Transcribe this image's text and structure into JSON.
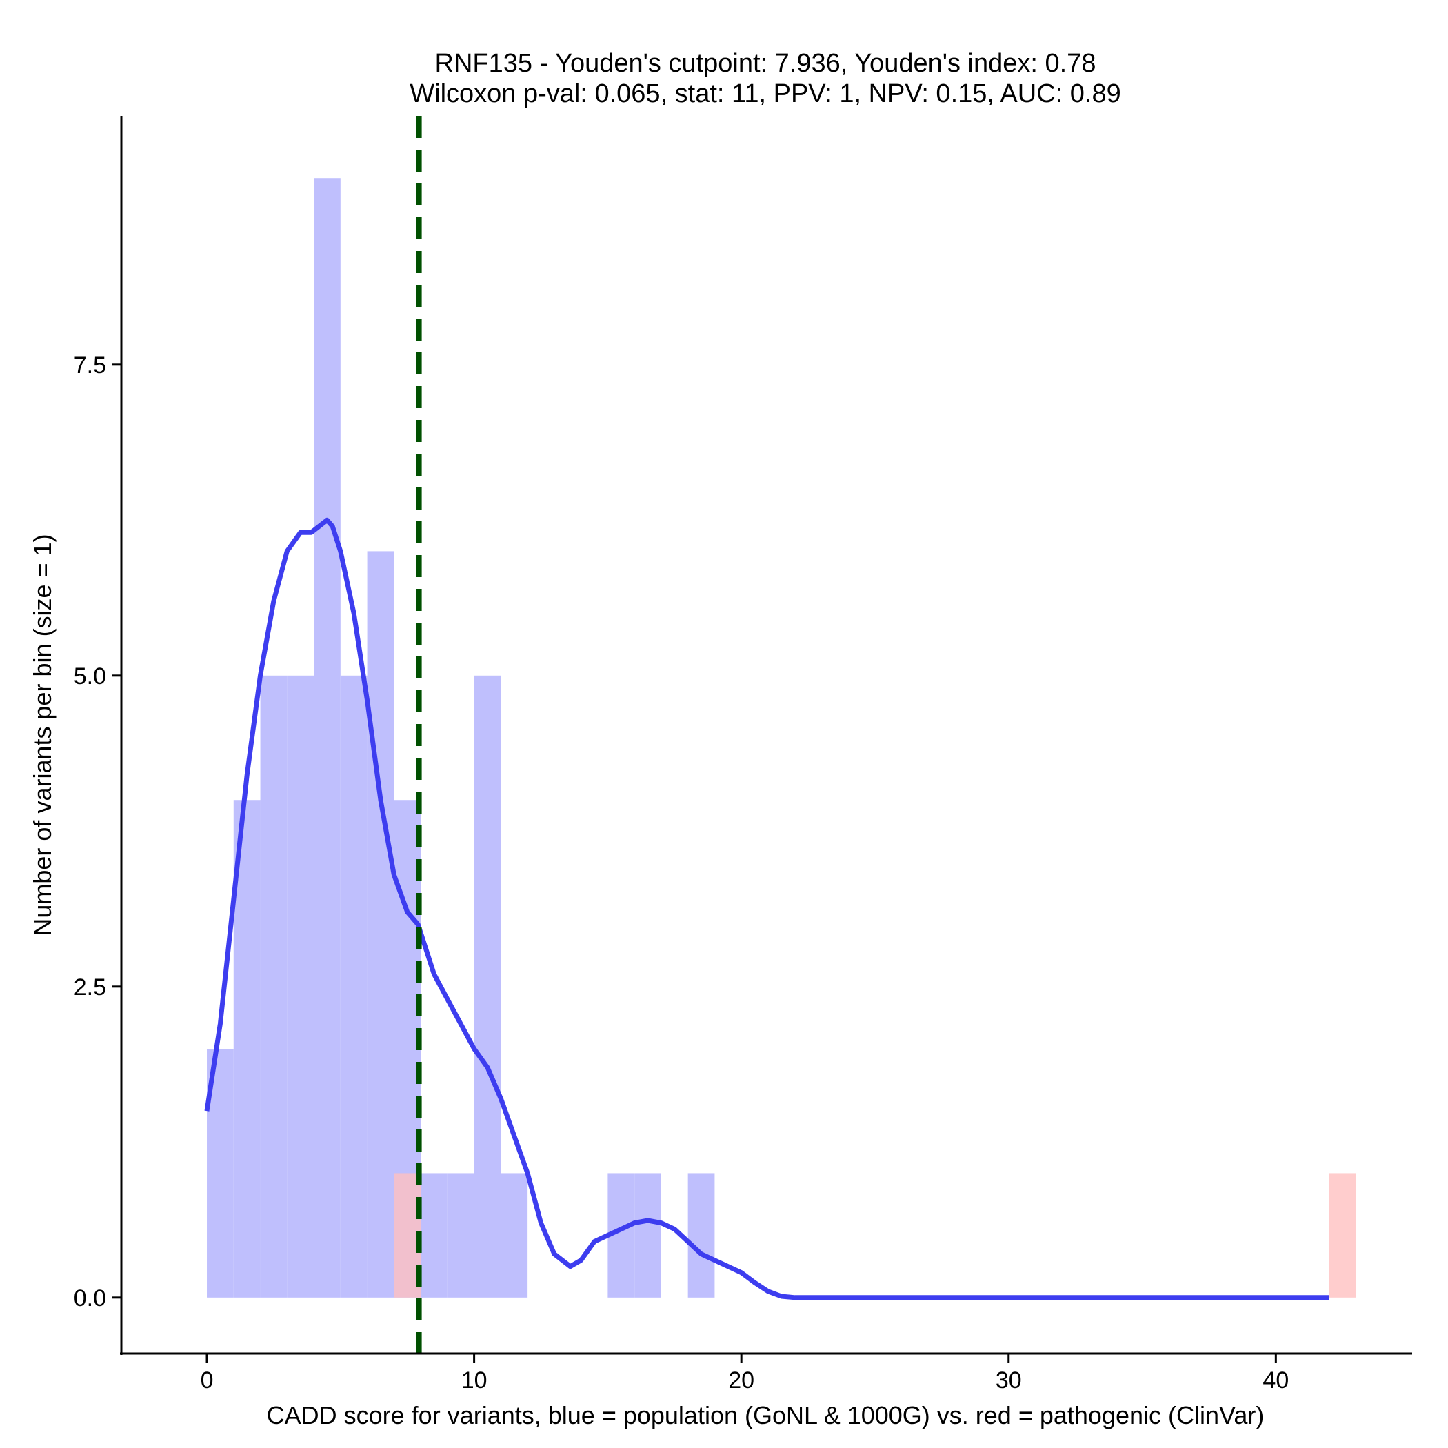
{
  "chart_data": {
    "type": "histogram",
    "title": "RNF135 - Youden's cutpoint: 7.936, Youden's index: 0.78",
    "subtitle": "Wilcoxon p-val: 0.065, stat: 11, PPV: 1, NPV: 0.15, AUC: 0.89",
    "xlabel": "CADD score for variants, blue = population (GoNL & 1000G) vs. red = pathogenic (ClinVar)",
    "ylabel": "Number of variants per bin (size = 1)",
    "xlim": [
      -3.2,
      45.1
    ],
    "ylim": [
      -0.45,
      9.5
    ],
    "x_ticks": [
      0,
      10,
      20,
      30,
      40
    ],
    "x_tick_labels": [
      "0",
      "10",
      "20",
      "30",
      "40"
    ],
    "y_ticks": [
      0,
      2.5,
      5,
      7.5
    ],
    "y_tick_labels": [
      "0.0",
      "2.5",
      "5.0",
      "7.5"
    ],
    "grid": false,
    "binwidth": 1,
    "series": [
      {
        "color": "#bfbffd",
        "bins": [
          {
            "x0": 0,
            "x1": 1,
            "count": 2
          },
          {
            "x0": 1,
            "x1": 2,
            "count": 4
          },
          {
            "x0": 2,
            "x1": 3,
            "count": 5
          },
          {
            "x0": 3,
            "x1": 4,
            "count": 5
          },
          {
            "x0": 4,
            "x1": 5,
            "count": 9
          },
          {
            "x0": 5,
            "x1": 6,
            "count": 5
          },
          {
            "x0": 6,
            "x1": 7,
            "count": 6
          },
          {
            "x0": 7,
            "x1": 8,
            "count": 4
          },
          {
            "x0": 8,
            "x1": 9,
            "count": 1
          },
          {
            "x0": 9,
            "x1": 10,
            "count": 1
          },
          {
            "x0": 10,
            "x1": 11,
            "count": 5
          },
          {
            "x0": 11,
            "x1": 12,
            "count": 1
          },
          {
            "x0": 15,
            "x1": 16,
            "count": 1
          },
          {
            "x0": 16,
            "x1": 17,
            "count": 1
          },
          {
            "x0": 18,
            "x1": 19,
            "count": 1
          }
        ]
      },
      {
        "color": "#ffc0c0",
        "bins": [
          {
            "x0": 7,
            "x1": 8,
            "count": 1
          },
          {
            "x0": 42,
            "x1": 43,
            "count": 1
          }
        ]
      }
    ],
    "density": {
      "color": "#3d3def",
      "x": [
        0,
        0.5,
        1,
        1.5,
        2,
        2.5,
        3,
        3.5,
        3.9,
        4.2,
        4.5,
        4.7,
        5,
        5.5,
        6,
        6.5,
        7,
        7.5,
        7.9,
        8.5,
        9,
        9.5,
        10,
        10.5,
        11,
        11.5,
        12,
        12.5,
        13,
        13.3,
        13.6,
        14,
        14.5,
        15,
        15.5,
        16,
        16.5,
        17,
        17.5,
        18,
        18.5,
        19,
        19.5,
        20,
        20.5,
        21,
        21.5,
        22,
        25,
        30,
        35,
        40,
        42
      ],
      "y": [
        1.5,
        2.2,
        3.2,
        4.2,
        5.0,
        5.6,
        6.0,
        6.15,
        6.15,
        6.2,
        6.25,
        6.2,
        6.0,
        5.5,
        4.8,
        4.0,
        3.4,
        3.1,
        3.0,
        2.6,
        2.4,
        2.2,
        2.0,
        1.85,
        1.6,
        1.3,
        1.0,
        0.6,
        0.35,
        0.3,
        0.25,
        0.3,
        0.45,
        0.5,
        0.55,
        0.6,
        0.62,
        0.6,
        0.55,
        0.45,
        0.35,
        0.3,
        0.25,
        0.2,
        0.12,
        0.05,
        0.01,
        0,
        0,
        0,
        0,
        0,
        0
      ]
    },
    "cutpoint": {
      "x": 7.936,
      "color": "#005000",
      "style": "dashed"
    }
  }
}
